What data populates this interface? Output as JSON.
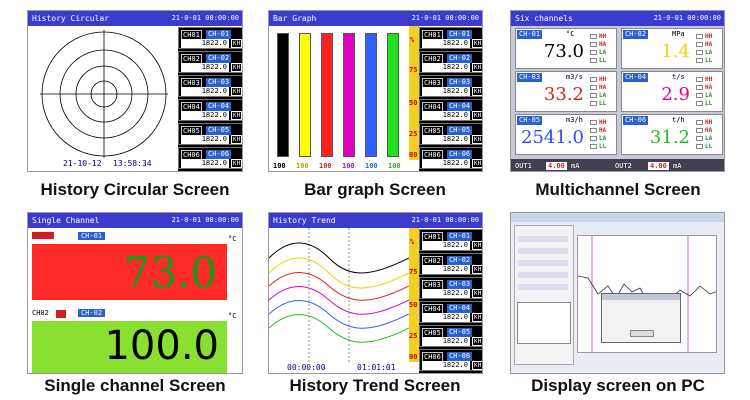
{
  "captions": [
    "History Circular Screen",
    "Bar graph Screen",
    "Multichannel Screen",
    "Single channel Screen",
    "History Trend Screen",
    "Display screen on PC"
  ],
  "clock": "21-0-01 00:00:00",
  "circular": {
    "title": "History Circular",
    "date": "21-10-12",
    "time": "13:58:34"
  },
  "bar": {
    "title": "Bar Graph",
    "unit": "%",
    "scale": [
      "75",
      "50",
      "25",
      "00"
    ],
    "bar_values": [
      "100",
      "100",
      "100",
      "100",
      "100",
      "100"
    ],
    "colors": [
      "#000000",
      "#ffff00",
      "#ff2020",
      "#e000c0",
      "#3060ff",
      "#20e020"
    ]
  },
  "channels": [
    {
      "name": "CH01",
      "tag": "CH-01",
      "value": "1822.0",
      "unit": "KH"
    },
    {
      "name": "CH02",
      "tag": "CH-02",
      "value": "1822.0",
      "unit": "KH"
    },
    {
      "name": "CH03",
      "tag": "CH-03",
      "value": "1822.0",
      "unit": "KH"
    },
    {
      "name": "CH04",
      "tag": "CH-04",
      "value": "1822.0",
      "unit": "KH"
    },
    {
      "name": "CH05",
      "tag": "CH-05",
      "value": "1822.0",
      "unit": "KH"
    },
    {
      "name": "CH06",
      "tag": "CH-06",
      "value": "1822.0",
      "unit": "KH"
    }
  ],
  "multi": {
    "title": "Six channels",
    "cells": [
      {
        "ch": "CH-01",
        "unit": "°C",
        "value": "73.0",
        "color": "#000000"
      },
      {
        "ch": "CH-02",
        "unit": "MPa",
        "value": "1.4",
        "color": "#e8d800"
      },
      {
        "ch": "CH-03",
        "unit": "m3/s",
        "value": "33.2",
        "color": "#e02020"
      },
      {
        "ch": "CH-04",
        "unit": "t/s",
        "value": "2.9",
        "color": "#e000a0"
      },
      {
        "ch": "CH-05",
        "unit": "m3/h",
        "value": "2541.0",
        "color": "#3050e0"
      },
      {
        "ch": "CH-06",
        "unit": "t/h",
        "value": "31.2",
        "color": "#20c020"
      }
    ],
    "alarms": [
      "HH",
      "HA",
      "LA",
      "LL"
    ],
    "out1": "OUT1",
    "out1_val": "4.00",
    "out2": "OUT2",
    "out2_val": "4.00",
    "out_unit": "mA"
  },
  "single": {
    "title": "Single Channel",
    "ch1": "CH-01",
    "ch1_name": "CH01",
    "v1": "73.0",
    "ch2": "CH-02",
    "ch2_name": "CH02",
    "v2": "100.0",
    "unit": "°C"
  },
  "trend": {
    "title": "History Trend",
    "unit": "%",
    "scale": [
      "75",
      "50",
      "25",
      "00"
    ],
    "t_start": "00:00:00",
    "t_mid": "01:01:01"
  }
}
